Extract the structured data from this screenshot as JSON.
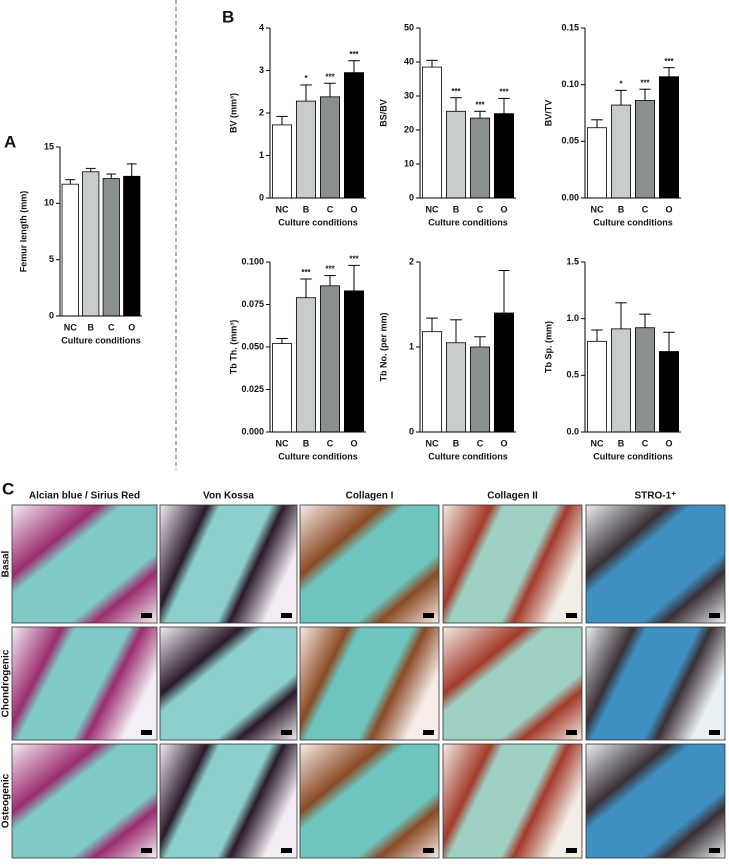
{
  "panels": {
    "a": "A",
    "b": "B",
    "c": "C"
  },
  "chart_data": [
    {
      "type": "bar",
      "ylabel": "Femur length (mm)",
      "xlabel": "Culture conditions",
      "categories": [
        "NC",
        "B",
        "C",
        "O"
      ],
      "values": [
        11.7,
        12.8,
        12.2,
        12.4
      ],
      "errors": [
        0.4,
        0.3,
        0.4,
        1.1
      ],
      "colors": [
        "#ffffff",
        "#c8cccc",
        "#8a9090",
        "#000000"
      ],
      "ylim": [
        0,
        15
      ],
      "yticks": [
        0,
        5,
        10,
        15
      ]
    },
    {
      "type": "bar",
      "ylabel": "BV (mm³)",
      "xlabel": "Culture conditions",
      "categories": [
        "NC",
        "B",
        "C",
        "O"
      ],
      "values": [
        1.72,
        2.28,
        2.38,
        2.95
      ],
      "errors": [
        0.2,
        0.38,
        0.32,
        0.28
      ],
      "annotations": [
        null,
        "*",
        "***",
        "***"
      ],
      "colors": [
        "#ffffff",
        "#c8cccc",
        "#8a9090",
        "#000000"
      ],
      "ylim": [
        0,
        4
      ],
      "yticks": [
        0,
        1,
        2,
        3,
        4
      ]
    },
    {
      "type": "bar",
      "ylabel": "BS/BV",
      "xlabel": "Culture conditions",
      "categories": [
        "NC",
        "B",
        "C",
        "O"
      ],
      "values": [
        38.5,
        25.5,
        23.5,
        24.8
      ],
      "errors": [
        2,
        4,
        2,
        4.5
      ],
      "annotations": [
        null,
        "***",
        "***",
        "***"
      ],
      "colors": [
        "#ffffff",
        "#c8cccc",
        "#8a9090",
        "#000000"
      ],
      "ylim": [
        0,
        50
      ],
      "yticks": [
        0,
        10,
        20,
        30,
        40,
        50
      ]
    },
    {
      "type": "bar",
      "ylabel": "BV/TV",
      "xlabel": "Culture conditions",
      "categories": [
        "NC",
        "B",
        "C",
        "O"
      ],
      "values": [
        0.062,
        0.082,
        0.086,
        0.107
      ],
      "errors": [
        0.007,
        0.013,
        0.01,
        0.008
      ],
      "annotations": [
        null,
        "*",
        "***",
        "***"
      ],
      "colors": [
        "#ffffff",
        "#c8cccc",
        "#8a9090",
        "#000000"
      ],
      "ylim": [
        0,
        0.15
      ],
      "yticks": [
        {
          "value": 0,
          "label": "0.00"
        },
        {
          "value": 0.05,
          "label": "0.05"
        },
        {
          "value": 0.1,
          "label": "0.10"
        },
        {
          "value": 0.15,
          "label": "0.15"
        }
      ]
    },
    {
      "type": "bar",
      "ylabel": "Tb Th. (mm³)",
      "xlabel": "Culture conditions",
      "categories": [
        "NC",
        "B",
        "C",
        "O"
      ],
      "values": [
        0.052,
        0.079,
        0.086,
        0.083
      ],
      "errors": [
        0.003,
        0.011,
        0.006,
        0.015
      ],
      "annotations": [
        null,
        "***",
        "***",
        "***"
      ],
      "colors": [
        "#ffffff",
        "#c8cccc",
        "#8a9090",
        "#000000"
      ],
      "ylim": [
        0,
        0.1
      ],
      "yticks": [
        {
          "value": 0,
          "label": "0.000"
        },
        {
          "value": 0.025,
          "label": "0.025"
        },
        {
          "value": 0.05,
          "label": "0.050"
        },
        {
          "value": 0.075,
          "label": "0.075"
        },
        {
          "value": 0.1,
          "label": "0.100"
        }
      ]
    },
    {
      "type": "bar",
      "ylabel": "Tb No. (per mm)",
      "xlabel": "Culture conditions",
      "categories": [
        "NC",
        "B",
        "C",
        "O"
      ],
      "values": [
        1.18,
        1.05,
        1.0,
        1.4
      ],
      "errors": [
        0.16,
        0.27,
        0.12,
        0.5
      ],
      "colors": [
        "#ffffff",
        "#c8cccc",
        "#8a9090",
        "#000000"
      ],
      "ylim": [
        0,
        2
      ],
      "yticks": [
        0,
        1,
        2
      ]
    },
    {
      "type": "bar",
      "ylabel": "Tb Sp. (mm)",
      "xlabel": "Culture conditions",
      "categories": [
        "NC",
        "B",
        "C",
        "O"
      ],
      "values": [
        0.8,
        0.91,
        0.92,
        0.71
      ],
      "errors": [
        0.1,
        0.23,
        0.12,
        0.17
      ],
      "colors": [
        "#ffffff",
        "#c8cccc",
        "#8a9090",
        "#000000"
      ],
      "ylim": [
        0,
        1.5
      ],
      "yticks": [
        {
          "value": 0,
          "label": "0.0"
        },
        {
          "value": 0.5,
          "label": "0.5"
        },
        {
          "value": 1,
          "label": "1.0"
        },
        {
          "value": 1.5,
          "label": "1.5"
        }
      ]
    }
  ],
  "histology": {
    "columns": [
      "Alcian blue / Sirius Red",
      "Von Kossa",
      "Collagen I",
      "Collagen II",
      "STRO-1⁺"
    ],
    "rows": [
      "Basal",
      "Chondrogenic",
      "Osteogenic"
    ]
  }
}
